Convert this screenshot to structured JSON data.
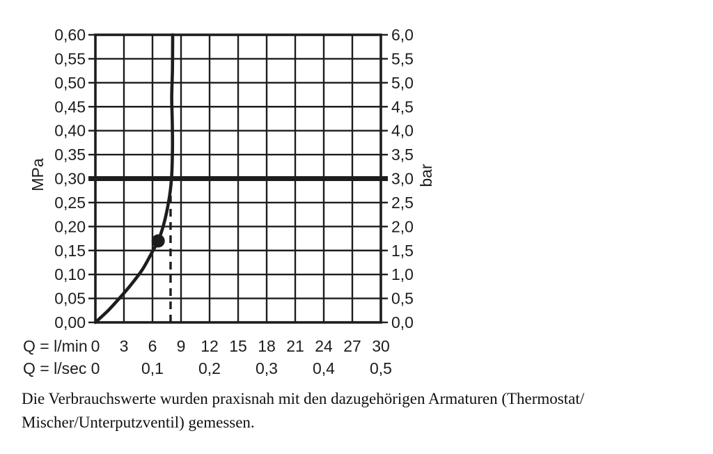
{
  "page": {
    "background": "#ffffff",
    "caption_line1": "Die Verbrauchswerte wurden praxisnah mit den dazugehörigen Armaturen (Thermostat/",
    "caption_line2": "Mischer/Unterputzventil) gemessen."
  },
  "chart_data": {
    "type": "line",
    "title": "",
    "grid": true,
    "colors": {
      "line": "#1d1d1b",
      "text": "#1d1d1b",
      "background": "#ffffff"
    },
    "y_left": {
      "label": "MPa",
      "min": 0,
      "max": 0.6,
      "step": 0.05,
      "ticks": [
        "0,60",
        "0,55",
        "0,50",
        "0,45",
        "0,40",
        "0,35",
        "0,30",
        "0,25",
        "0,20",
        "0,15",
        "0,10",
        "0,05",
        "0,00"
      ]
    },
    "y_right": {
      "label": "bar",
      "min": 0,
      "max": 6,
      "step": 0.5,
      "ticks": [
        "6,0",
        "5,5",
        "5,0",
        "4,5",
        "4,0",
        "3,5",
        "3,0",
        "2,5",
        "2,0",
        "1,5",
        "1,0",
        "0,5",
        "0,0"
      ]
    },
    "x_lmin": {
      "label": "Q = l/min",
      "min": 0,
      "max": 30,
      "step": 3,
      "ticks": [
        "0",
        "3",
        "6",
        "9",
        "12",
        "15",
        "18",
        "21",
        "24",
        "27",
        "30"
      ]
    },
    "x_lsec": {
      "label": "Q = l/sec",
      "ticks": [
        {
          "value": 0,
          "text": "0"
        },
        {
          "value": 6,
          "text": "0,1"
        },
        {
          "value": 12,
          "text": "0,2"
        },
        {
          "value": 18,
          "text": "0,3"
        },
        {
          "value": 24,
          "text": "0,4"
        },
        {
          "value": 30,
          "text": "0,5"
        }
      ]
    },
    "curve_points_lmin_mpa": [
      [
        0,
        0
      ],
      [
        1.3,
        0.024
      ],
      [
        2.6,
        0.052
      ],
      [
        3.8,
        0.08
      ],
      [
        5.0,
        0.112
      ],
      [
        6.0,
        0.148
      ],
      [
        6.6,
        0.17
      ],
      [
        7.2,
        0.206
      ],
      [
        7.7,
        0.252
      ],
      [
        8.0,
        0.3
      ],
      [
        8.1,
        0.36
      ],
      [
        8.08,
        0.42
      ],
      [
        8.02,
        0.47
      ],
      [
        8.1,
        0.53
      ],
      [
        8.12,
        0.6
      ]
    ],
    "operating_point_lmin_mpa": [
      6.6,
      0.17
    ],
    "reference_pressure_line_mpa": 0.3,
    "dashed_guide_line": {
      "x_lmin": 7.9,
      "from_mpa": 0,
      "to_mpa": 0.265
    }
  }
}
